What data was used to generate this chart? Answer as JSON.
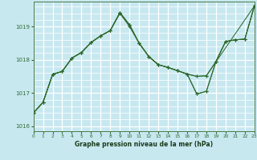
{
  "xlabel": "Graphe pression niveau de la mer (hPa)",
  "background_color": "#c8e8f0",
  "grid_color": "#ffffff",
  "line_color": "#2d6a2d",
  "xlim": [
    0,
    23
  ],
  "ylim": [
    1015.85,
    1019.75
  ],
  "yticks": [
    1016,
    1017,
    1018,
    1019
  ],
  "xticks": [
    0,
    1,
    2,
    3,
    4,
    5,
    6,
    7,
    8,
    9,
    10,
    11,
    12,
    13,
    14,
    15,
    16,
    17,
    18,
    19,
    20,
    21,
    22,
    23
  ],
  "series": [
    {
      "x": [
        0,
        1,
        2,
        3,
        4,
        5,
        6,
        7,
        8,
        9,
        10,
        11,
        12,
        13,
        14,
        15,
        16,
        17,
        18,
        23
      ],
      "y": [
        1016.4,
        1016.72,
        1017.56,
        1017.65,
        1018.05,
        1018.22,
        1018.52,
        1018.72,
        1018.88,
        1019.4,
        1019.0,
        1018.5,
        1018.1,
        1017.85,
        1017.77,
        1017.67,
        1017.57,
        1017.5,
        1017.52,
        1019.62
      ]
    },
    {
      "x": [
        0,
        1,
        2,
        3,
        4,
        5,
        6,
        7,
        8,
        9,
        10,
        11,
        12,
        13,
        14,
        15,
        16,
        17,
        18,
        19,
        20,
        21,
        22,
        23
      ],
      "y": [
        1016.4,
        1016.72,
        1017.56,
        1017.65,
        1018.05,
        1018.22,
        1018.52,
        1018.72,
        1018.88,
        1019.42,
        1019.05,
        1018.5,
        1018.1,
        1017.85,
        1017.77,
        1017.67,
        1017.57,
        1017.5,
        1017.52,
        1017.95,
        1018.55,
        1018.6,
        1018.62,
        1019.62
      ]
    },
    {
      "x": [
        0,
        1,
        2,
        3,
        4,
        5,
        6,
        7,
        8,
        9,
        10,
        11,
        12,
        13,
        14,
        15,
        16,
        17,
        18,
        19,
        20,
        21,
        22,
        23
      ],
      "y": [
        1016.4,
        1016.72,
        1017.56,
        1017.65,
        1018.05,
        1018.22,
        1018.52,
        1018.72,
        1018.88,
        1019.42,
        1019.05,
        1018.5,
        1018.1,
        1017.85,
        1017.77,
        1017.67,
        1017.57,
        1016.97,
        1017.05,
        1017.95,
        1018.55,
        1018.6,
        1018.62,
        1019.62
      ]
    },
    {
      "x": [
        0,
        1,
        2,
        3,
        4,
        5,
        6,
        7,
        8,
        9,
        10,
        11,
        12,
        13,
        14,
        15,
        16,
        17,
        18,
        19,
        20,
        21,
        22,
        23
      ],
      "y": [
        1016.4,
        1016.72,
        1017.56,
        1017.65,
        1018.05,
        1018.22,
        1018.52,
        1018.72,
        1018.88,
        1019.42,
        1019.05,
        1018.5,
        1018.1,
        1017.85,
        1017.77,
        1017.67,
        1017.57,
        1016.97,
        1017.05,
        1017.95,
        1018.55,
        1018.6,
        1018.62,
        1019.62
      ]
    }
  ]
}
